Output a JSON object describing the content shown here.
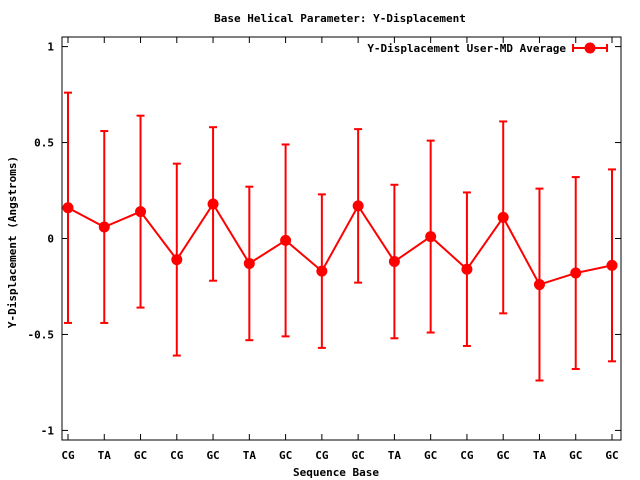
{
  "chart_data": {
    "type": "line",
    "title": "Base  Helical Parameter: Y-Displacement",
    "xlabel": "Sequence Base",
    "ylabel": "Y-Displacement (Angstroms)",
    "ylim": [
      -1.05,
      1.05
    ],
    "yticks": [
      "1",
      "0.5",
      "0",
      "-0.5",
      "-1"
    ],
    "ytick_values": [
      1,
      0.5,
      0,
      -0.5,
      -1
    ],
    "categories": [
      "CG",
      "TA",
      "GC",
      "CG",
      "GC",
      "TA",
      "GC",
      "CG",
      "GC",
      "TA",
      "GC",
      "CG",
      "GC",
      "TA",
      "GC",
      "GC"
    ],
    "grid": false,
    "legend_position": "top-right",
    "series": [
      {
        "name": "Y-Displacement User-MD Average",
        "color": "#ff0000",
        "marker": "circle",
        "values": [
          0.16,
          0.06,
          0.14,
          -0.11,
          0.18,
          -0.13,
          -0.01,
          -0.17,
          0.17,
          -0.12,
          0.01,
          -0.16,
          0.11,
          -0.24,
          -0.18,
          -0.14
        ],
        "err_low": [
          -0.44,
          -0.44,
          -0.36,
          -0.61,
          -0.22,
          -0.53,
          -0.51,
          -0.57,
          -0.23,
          -0.52,
          -0.49,
          -0.56,
          -0.39,
          -0.74,
          -0.68,
          -0.64
        ],
        "err_high": [
          0.76,
          0.56,
          0.64,
          0.39,
          0.58,
          0.27,
          0.49,
          0.23,
          0.57,
          0.28,
          0.51,
          0.24,
          0.61,
          0.26,
          0.32,
          0.36
        ]
      }
    ]
  }
}
